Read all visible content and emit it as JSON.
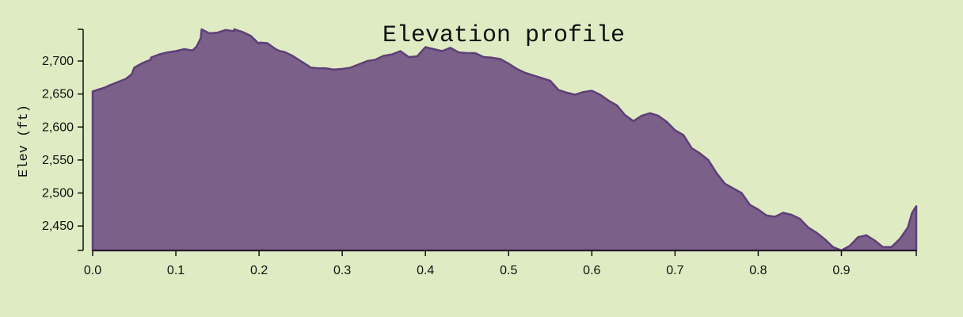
{
  "chart_data": {
    "type": "area",
    "title": "Elevation profile",
    "xlabel": "",
    "ylabel": "Elev (ft)",
    "xlim": [
      0,
      0.99
    ],
    "ylim": [
      2413,
      2748
    ],
    "x_ticks": [
      "0.0",
      "0.1",
      "0.2",
      "0.3",
      "0.4",
      "0.5",
      "0.6",
      "0.7",
      "0.8",
      "0.9"
    ],
    "y_ticks": [
      "2,450",
      "2,500",
      "2,550",
      "2,600",
      "2,650",
      "2,700"
    ],
    "grid": false,
    "fill_color": "#7b6189",
    "line_color": "#5e3f78",
    "background": "#dfebc2",
    "series": [
      {
        "x": [
          0,
          0.01,
          0.015,
          0.02,
          0.03,
          0.04,
          0.047,
          0.05,
          0.06,
          0.07,
          0.07,
          0.08,
          0.09,
          0.1,
          0.11,
          0.12,
          0.125,
          0.13,
          0.131,
          0.14,
          0.15,
          0.16,
          0.17,
          0.17,
          0.18,
          0.19,
          0.2,
          0.201,
          0.21,
          0.22,
          0.225,
          0.23,
          0.24,
          0.25,
          0.26,
          0.262,
          0.27,
          0.28,
          0.29,
          0.3,
          0.31,
          0.32,
          0.33,
          0.34,
          0.35,
          0.36,
          0.37,
          0.38,
          0.39,
          0.4,
          0.41,
          0.42,
          0.43,
          0.44,
          0.45,
          0.46,
          0.47,
          0.48,
          0.49,
          0.5,
          0.51,
          0.52,
          0.53,
          0.54,
          0.55,
          0.56,
          0.57,
          0.58,
          0.59,
          0.6,
          0.61,
          0.62,
          0.63,
          0.64,
          0.65,
          0.66,
          0.67,
          0.68,
          0.69,
          0.7,
          0.71,
          0.72,
          0.73,
          0.74,
          0.75,
          0.76,
          0.77,
          0.78,
          0.79,
          0.8,
          0.81,
          0.82,
          0.83,
          0.84,
          0.85,
          0.86,
          0.87,
          0.88,
          0.89,
          0.9,
          0.91,
          0.92,
          0.93,
          0.94,
          0.95,
          0.96,
          0.97,
          0.98,
          0.985,
          0.99
        ],
        "y": [
          2654,
          2658,
          2660,
          2663,
          2668,
          2673,
          2680,
          2690,
          2697,
          2702,
          2705,
          2710,
          2713,
          2715,
          2718,
          2716,
          2722,
          2735,
          2748,
          2742,
          2743,
          2747,
          2745,
          2748,
          2744,
          2738,
          2726,
          2728,
          2727,
          2718,
          2715,
          2714,
          2708,
          2700,
          2692,
          2690,
          2689,
          2689,
          2687,
          2688,
          2690,
          2695,
          2700,
          2702,
          2708,
          2710,
          2715,
          2706,
          2707,
          2721,
          2718,
          2715,
          2720,
          2713,
          2712,
          2712,
          2706,
          2705,
          2703,
          2696,
          2688,
          2682,
          2678,
          2674,
          2670,
          2656,
          2652,
          2649,
          2653,
          2655,
          2649,
          2640,
          2633,
          2618,
          2609,
          2617,
          2621,
          2617,
          2608,
          2595,
          2588,
          2568,
          2560,
          2550,
          2530,
          2514,
          2507,
          2500,
          2482,
          2475,
          2466,
          2464,
          2470,
          2467,
          2461,
          2448,
          2440,
          2430,
          2418,
          2413,
          2420,
          2433,
          2436,
          2428,
          2418,
          2418,
          2430,
          2448,
          2470,
          2480
        ]
      }
    ]
  }
}
